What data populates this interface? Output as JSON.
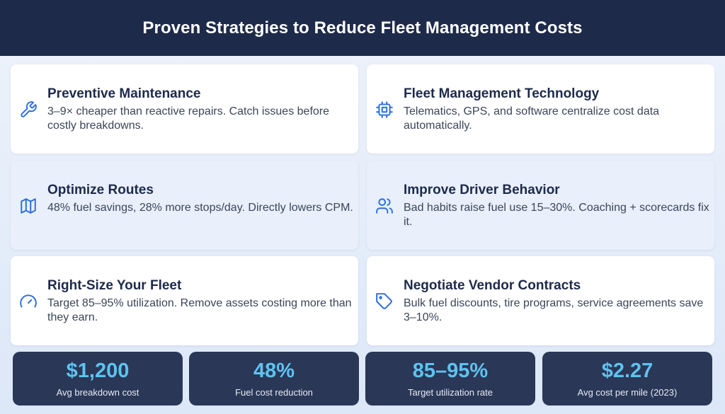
{
  "header": {
    "title": "Proven Strategies to Reduce Fleet Management Costs"
  },
  "colors": {
    "header_bg": "#1e2a4a",
    "accent": "#5ec3f0",
    "icon": "#2b6de0",
    "stat_bg": "#2a3757"
  },
  "cards": [
    {
      "icon": "wrench-icon",
      "title": "Preventive Maintenance",
      "desc": "3–9× cheaper than reactive repairs. Catch issues before costly breakdowns."
    },
    {
      "icon": "chip-icon",
      "title": "Fleet Management Technology",
      "desc": "Telematics, GPS, and software centralize cost data automatically."
    },
    {
      "icon": "map-icon",
      "title": "Optimize Routes",
      "desc": "48% fuel savings, 28% more stops/day. Directly lowers CPM."
    },
    {
      "icon": "users-icon",
      "title": "Improve Driver Behavior",
      "desc": "Bad habits raise fuel use 15–30%. Coaching + scorecards fix it."
    },
    {
      "icon": "gauge-icon",
      "title": "Right-Size Your Fleet",
      "desc": "Target 85–95% utilization. Remove assets costing more than they earn."
    },
    {
      "icon": "tag-icon",
      "title": "Negotiate Vendor Contracts",
      "desc": "Bulk fuel discounts, tire programs, service agreements save 3–10%."
    }
  ],
  "stats": [
    {
      "value": "$1,200",
      "label": "Avg breakdown cost"
    },
    {
      "value": "48%",
      "label": "Fuel cost reduction"
    },
    {
      "value": "85–95%",
      "label": "Target utilization rate"
    },
    {
      "value": "$2.27",
      "label": "Avg cost per mile (2023)"
    }
  ]
}
